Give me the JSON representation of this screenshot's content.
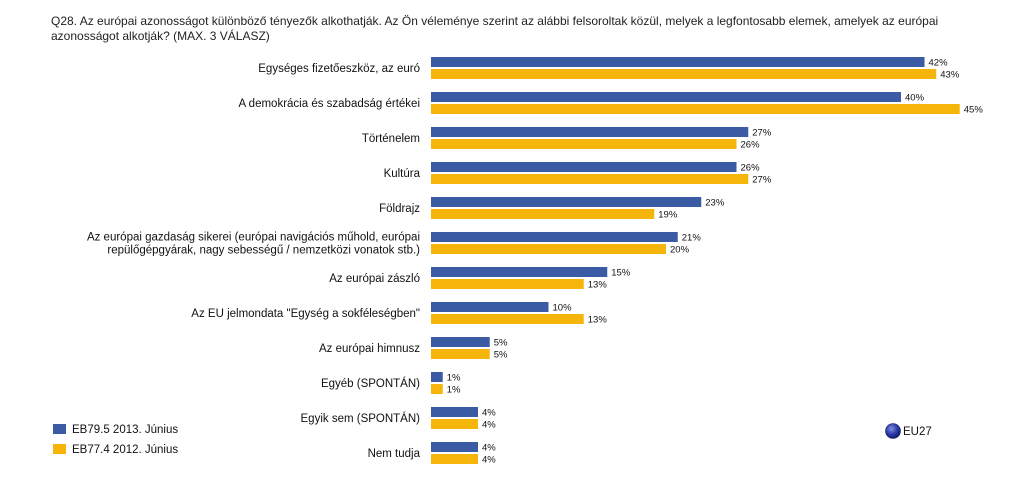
{
  "question": "Q28. Az európai azonosságot különböző tényezők alkothatják. Az Ön véleménye szerint az alábbi felsoroltak közül, melyek a legfontosabb elemek, amelyek az európai azonosságot alkotják? (MAX. 3 VÁLASZ)",
  "region_label": "EU27",
  "chart_data": {
    "type": "bar",
    "orientation": "horizontal",
    "value_suffix": "%",
    "xlim": [
      0,
      50
    ],
    "grid": false,
    "legend_position": "bottom-left",
    "categories": [
      [
        "Egységes fizetőeszköz, az euró"
      ],
      [
        "A demokrácia és szabadság értékei"
      ],
      [
        "Történelem"
      ],
      [
        "Kultúra"
      ],
      [
        "Földrajz"
      ],
      [
        "Az európai gazdaság sikerei (európai navigációs műhold, európai",
        "repülőgépgyárak, nagy sebességű / nemzetközi vonatok stb.)"
      ],
      [
        "Az európai zászló"
      ],
      [
        "Az EU jelmondata \"Egység a sokféleségben\""
      ],
      [
        "Az európai himnusz"
      ],
      [
        "Egyéb (SPONTÁN)"
      ],
      [
        "Egyik sem (SPONTÁN)"
      ],
      [
        "Nem tudja"
      ]
    ],
    "series": [
      {
        "name": "EB79.5 2013. Június",
        "color": "#3b5ba5",
        "values": [
          42,
          40,
          27,
          26,
          23,
          21,
          15,
          10,
          5,
          1,
          4,
          4
        ]
      },
      {
        "name": "EB77.4 2012. Június",
        "color": "#f5b50a",
        "values": [
          43,
          45,
          26,
          27,
          19,
          20,
          13,
          13,
          5,
          1,
          4,
          4
        ]
      }
    ]
  }
}
